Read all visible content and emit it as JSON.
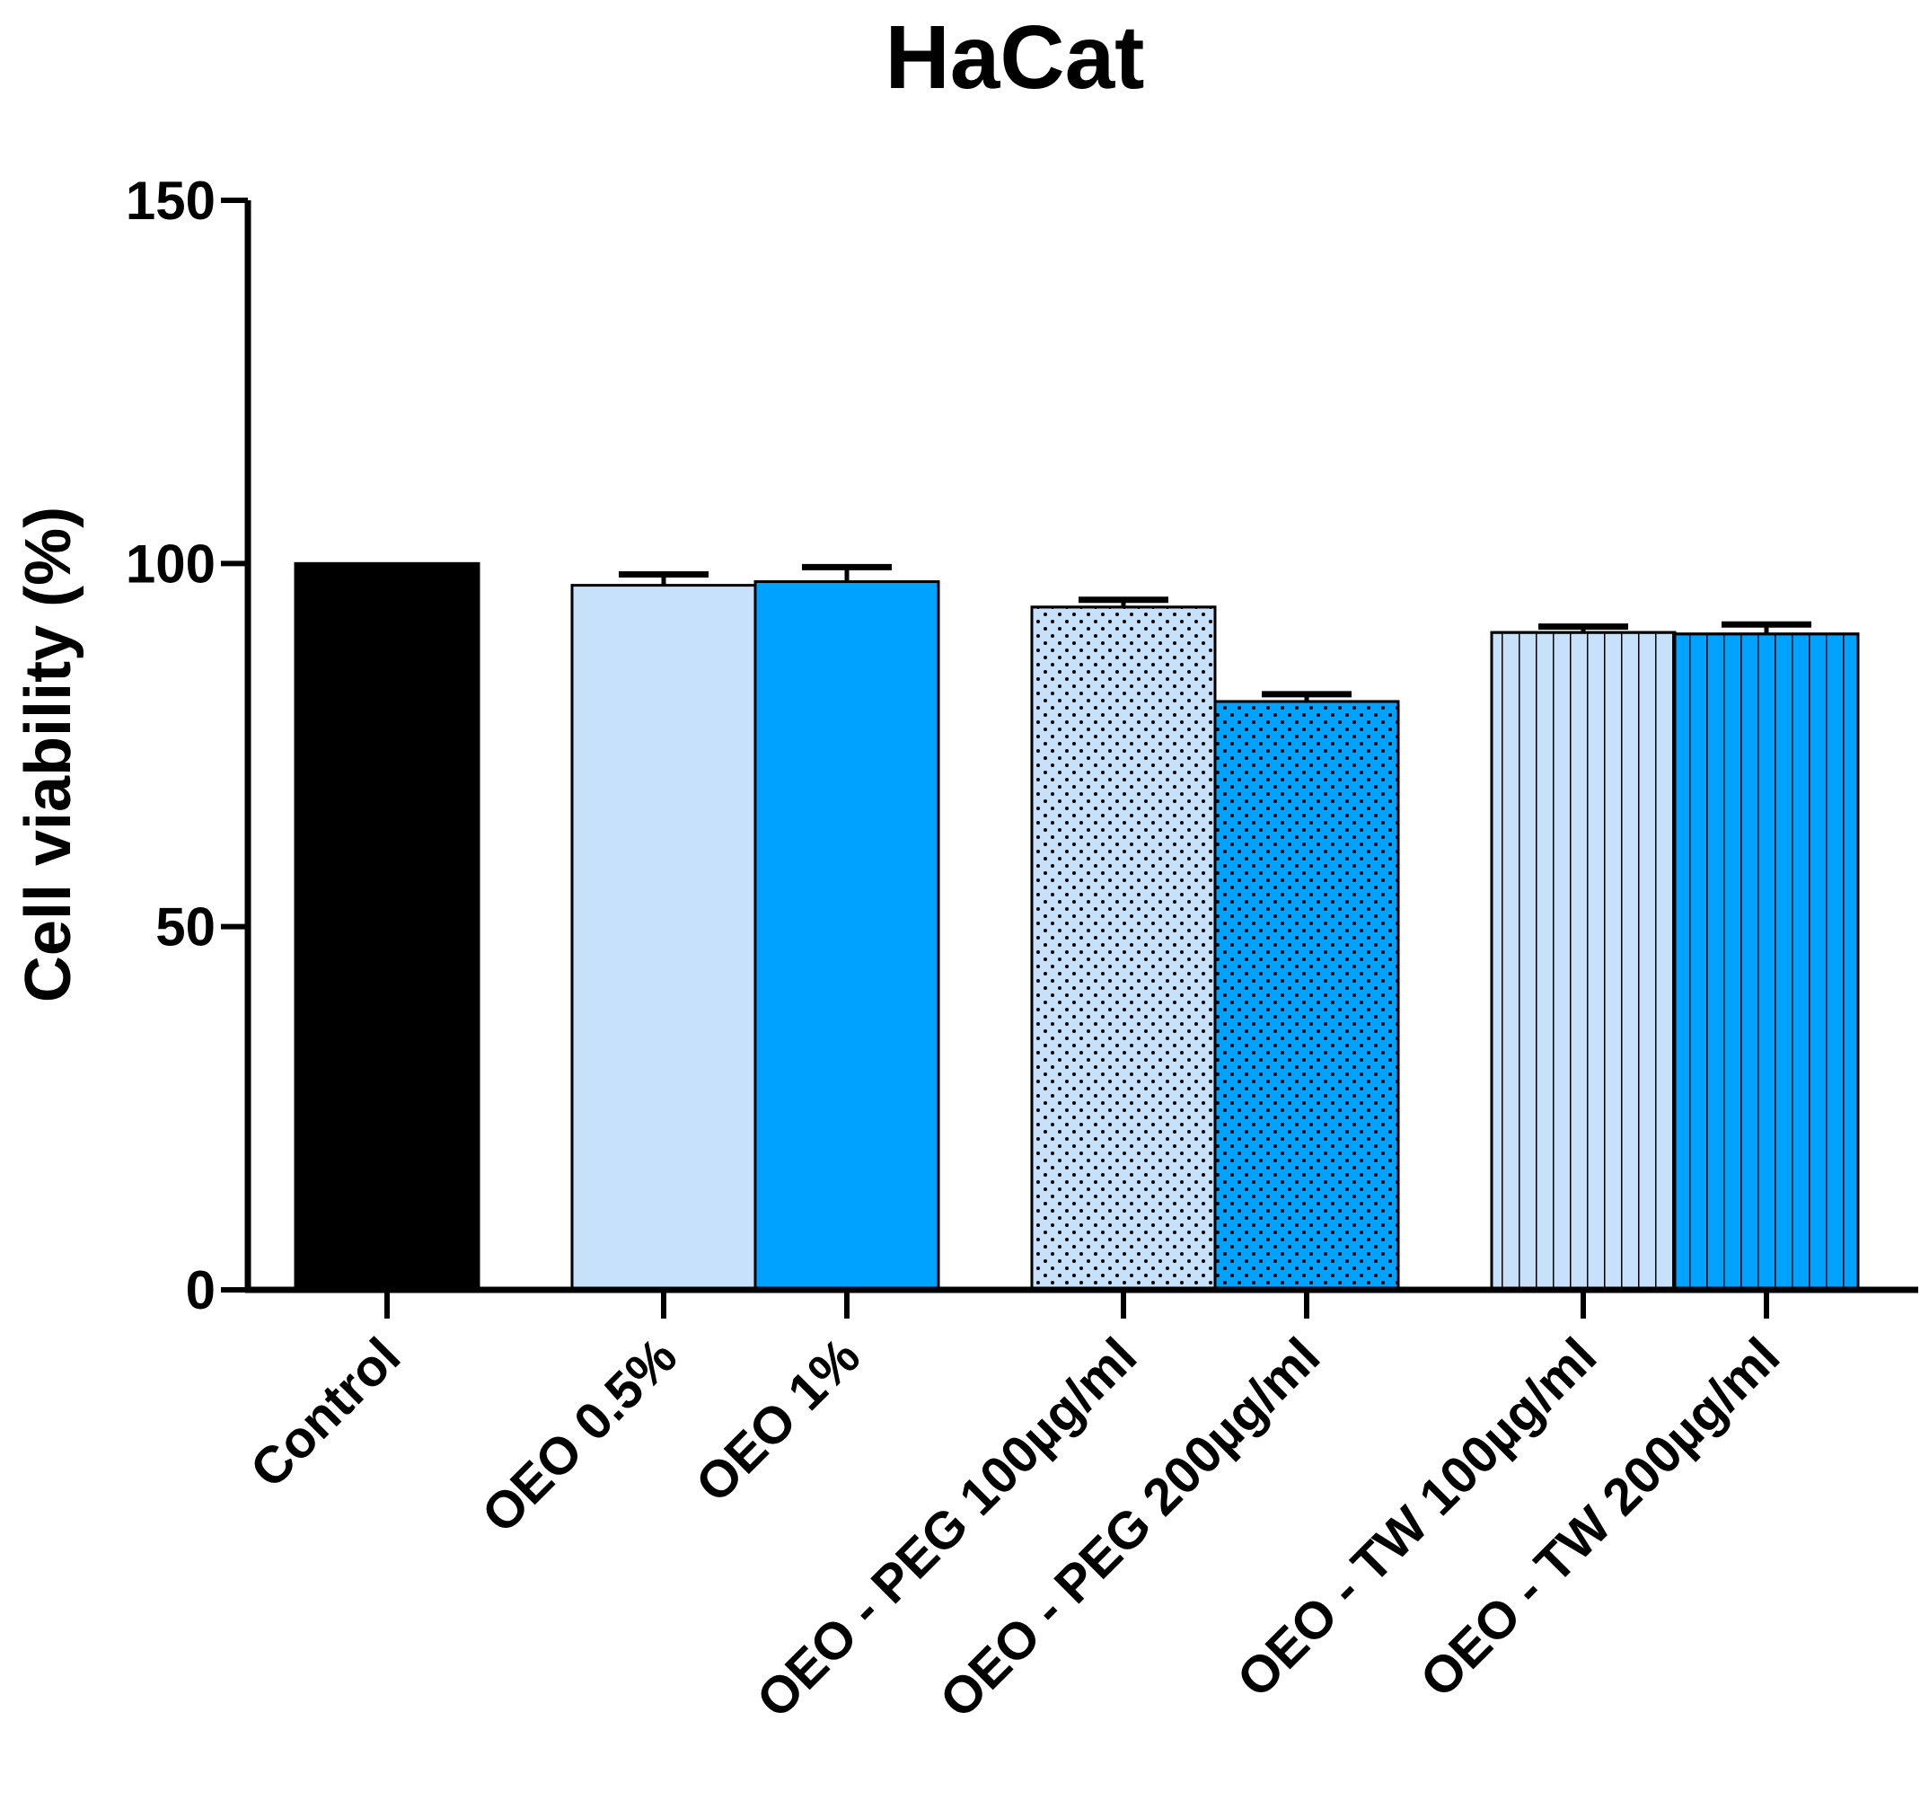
{
  "chart_data": {
    "type": "bar",
    "title": "HaCat",
    "xlabel": "",
    "ylabel": "Cell viability (%)",
    "ylim": [
      0,
      150
    ],
    "yticks": [
      0,
      50,
      100,
      150
    ],
    "grid": false,
    "categories": [
      "Control",
      "OEO 0.5%",
      "OEO  1%",
      "OEO - PEG 100µg/ml",
      "OEO - PEG 200µg/ml",
      "OEO - TW 100µg/ml",
      "OEO - TW 200µg/ml"
    ],
    "values": [
      100,
      97,
      97.5,
      94,
      81,
      90.5,
      90.3
    ],
    "errors": [
      0,
      1.5,
      2,
      1,
      1,
      0.8,
      1.3
    ],
    "fill_colors": [
      "#000000",
      "#c6e1f9",
      "#00a2ff",
      "#c6e1f9",
      "#00a2ff",
      "#c6e1f9",
      "#00a2ff"
    ],
    "patterns": [
      "solid",
      "solid",
      "solid",
      "dots",
      "dots",
      "vertical-lines",
      "vertical-lines"
    ]
  }
}
